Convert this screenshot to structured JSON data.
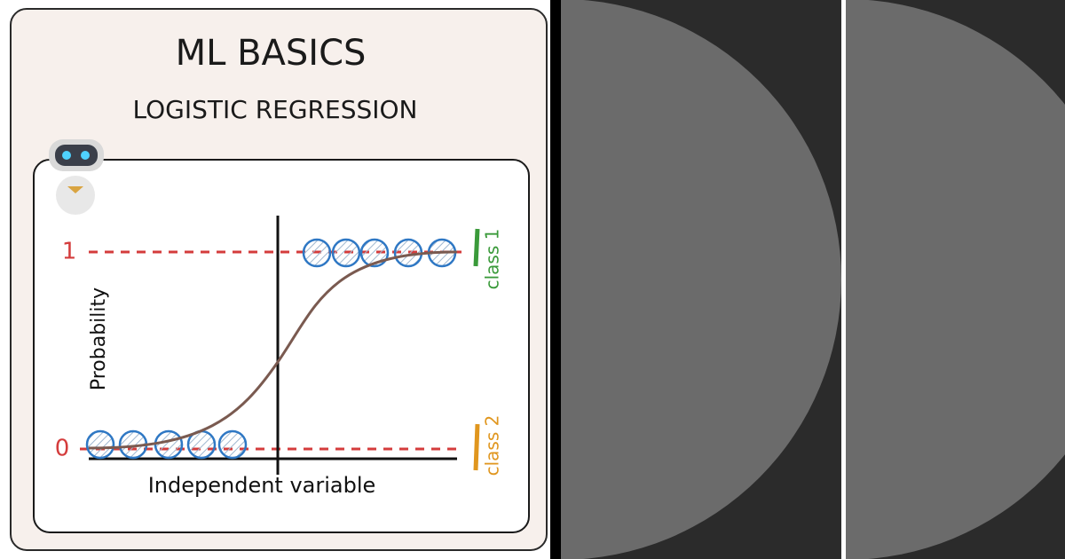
{
  "header": {
    "title": "ML BASICS",
    "subtitle": "LOGISTIC REGRESSION"
  },
  "diagram": {
    "y_axis_label": "Probability",
    "x_axis_label": "Independent variable",
    "level_high": "1",
    "level_low": "0",
    "class_high": "class 1",
    "class_low": "class 2"
  }
}
